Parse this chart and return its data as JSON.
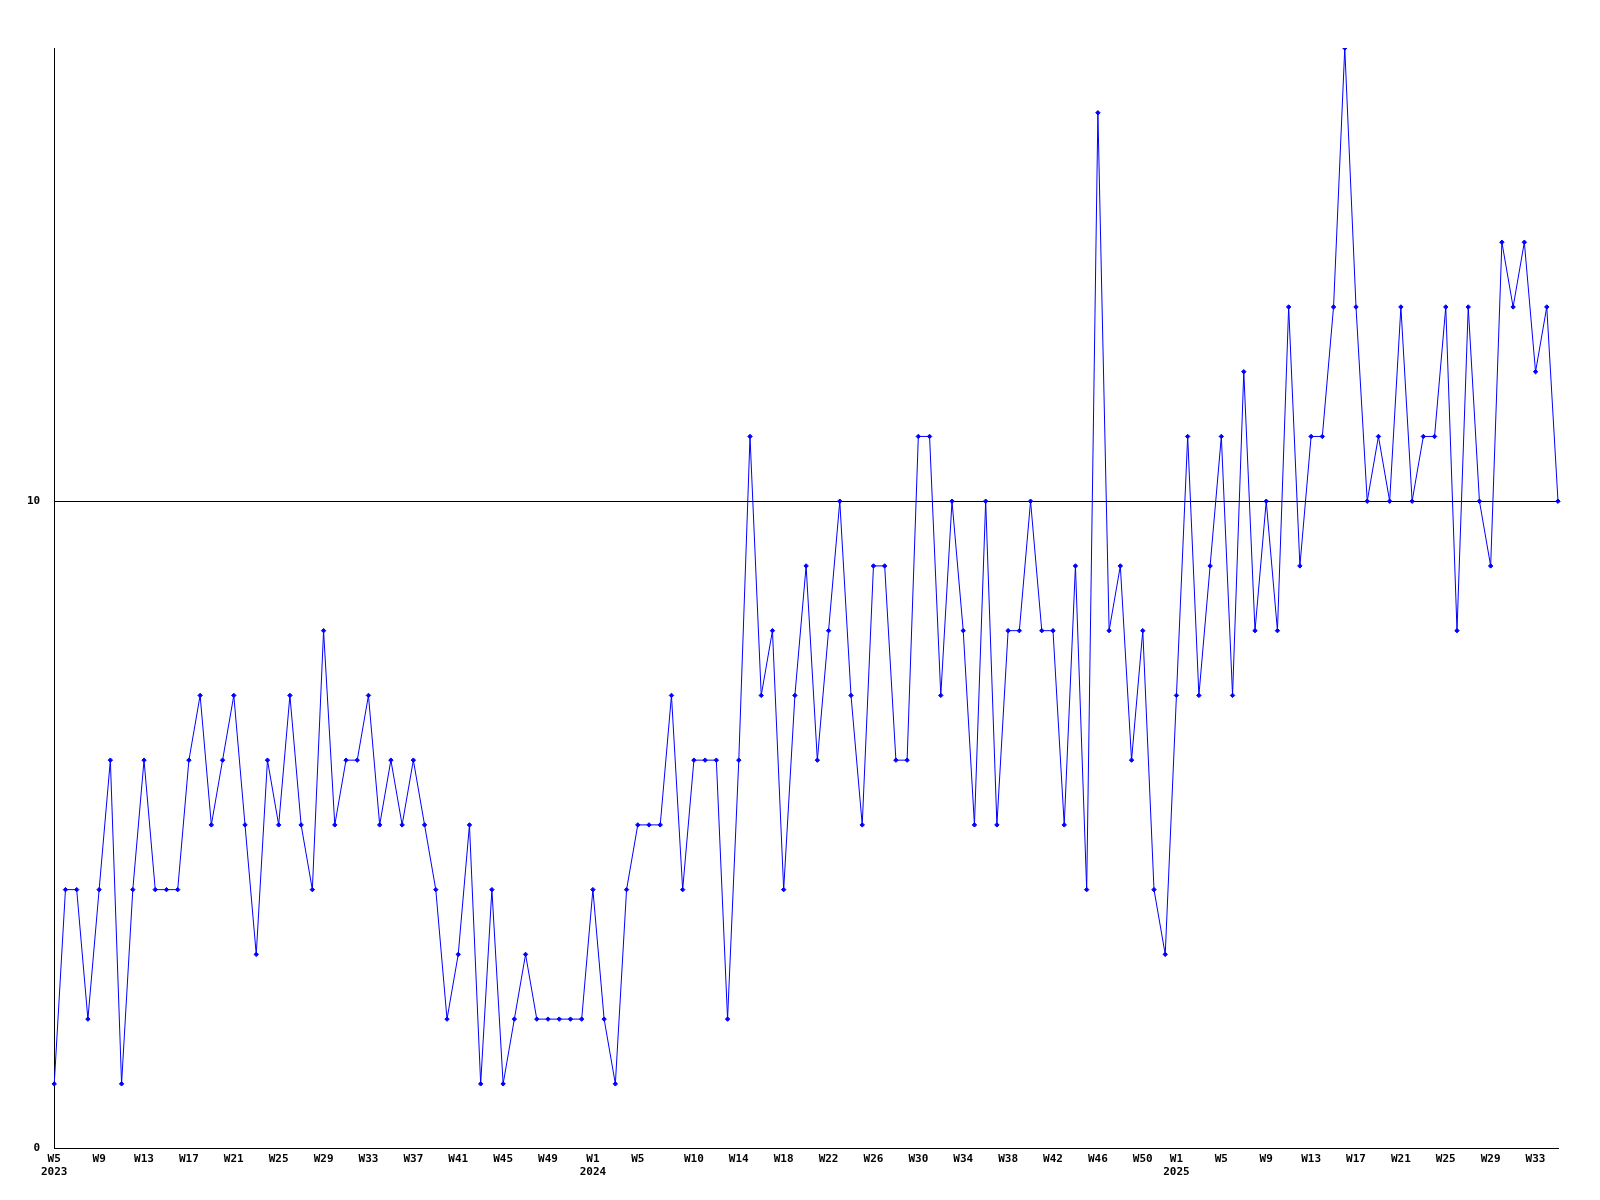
{
  "chart_data": {
    "type": "line",
    "categories": [
      "W5\n2023",
      null,
      null,
      null,
      "W9",
      null,
      null,
      null,
      "W13",
      null,
      null,
      null,
      "W17",
      null,
      null,
      null,
      "W21",
      null,
      null,
      null,
      "W25",
      null,
      null,
      null,
      "W29",
      null,
      null,
      null,
      "W33",
      null,
      null,
      null,
      "W37",
      null,
      null,
      null,
      "W41",
      null,
      null,
      null,
      "W45",
      null,
      null,
      null,
      "W49",
      null,
      null,
      null,
      "W1\n2024",
      null,
      null,
      null,
      "W5",
      null,
      null,
      null,
      null,
      "W10",
      null,
      null,
      null,
      "W14",
      null,
      null,
      null,
      "W18",
      null,
      null,
      null,
      "W22",
      null,
      null,
      null,
      "W26",
      null,
      null,
      null,
      "W30",
      null,
      null,
      null,
      "W34",
      null,
      null,
      null,
      "W38",
      null,
      null,
      null,
      "W42",
      null,
      null,
      null,
      "W46",
      null,
      null,
      null,
      "W50",
      null,
      null,
      "W1\n2025",
      null,
      null,
      null,
      "W5",
      null,
      null,
      null,
      "W9",
      null,
      null,
      null,
      "W13",
      null,
      null,
      null,
      "W17",
      null,
      null,
      null,
      "W21",
      null,
      null,
      null,
      "W25",
      null,
      null,
      null,
      "W29",
      null,
      null,
      null,
      "W33",
      null,
      null
    ],
    "series": [
      {
        "color": "#0000ff",
        "values": [
          1,
          4,
          4,
          2,
          4,
          6,
          1,
          4,
          6,
          4,
          4,
          4,
          6,
          7,
          5,
          6,
          7,
          5,
          3,
          6,
          5,
          7,
          5,
          4,
          8,
          5,
          6,
          6,
          7,
          5,
          6,
          5,
          6,
          5,
          4,
          2,
          3,
          5,
          1,
          4,
          1,
          2,
          3,
          2,
          2,
          2,
          2,
          2,
          4,
          2,
          1,
          4,
          5,
          5,
          5,
          7,
          4,
          6,
          6,
          6,
          2,
          6,
          11,
          7,
          8,
          4,
          7,
          9,
          6,
          8,
          10,
          7,
          5,
          9,
          9,
          6,
          6,
          11,
          11,
          7,
          10,
          8,
          5,
          10,
          5,
          8,
          8,
          10,
          8,
          8,
          5,
          9,
          4,
          16,
          8,
          9,
          6,
          8,
          4,
          3,
          7,
          11,
          7,
          9,
          11,
          7,
          12,
          8,
          10,
          8,
          13,
          9,
          11,
          11,
          13,
          17,
          13,
          10,
          11,
          10,
          13,
          10,
          11,
          11,
          13,
          8,
          13,
          10,
          9,
          14,
          13,
          14,
          12,
          13,
          10
        ]
      }
    ],
    "ylim": [
      0,
      17
    ],
    "yticks": [
      0,
      10
    ],
    "grid": "y",
    "marker": "diamond",
    "line_style": "solid",
    "legend": false
  }
}
